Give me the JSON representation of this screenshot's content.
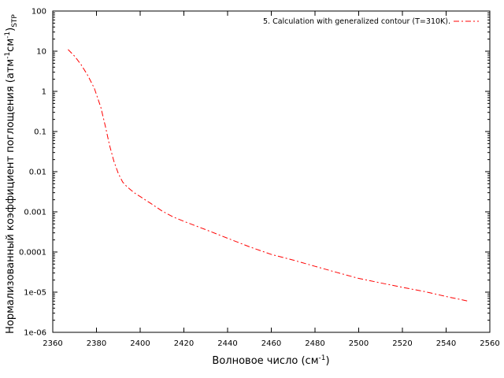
{
  "chart_data": {
    "type": "line",
    "title": "",
    "xlabel_main": "Волновое число (см",
    "xlabel_sup": "-1",
    "xlabel_end": ")",
    "ylabel_main": "Нормализованный коэффициент поглощения (атм",
    "ylabel_sup1": "-1",
    "ylabel_mid": "см",
    "ylabel_sup2": "-1",
    "ylabel_close": ")",
    "ylabel_sub": "STP",
    "xlim": [
      2360,
      2560
    ],
    "ylim": [
      1e-06,
      100
    ],
    "yscale": "log",
    "x_ticks": [
      "2360",
      "2380",
      "2400",
      "2420",
      "2440",
      "2460",
      "2480",
      "2500",
      "2520",
      "2540",
      "2560"
    ],
    "y_ticks": [
      "100",
      "10",
      "1",
      "0.1",
      "0.01",
      "0.001",
      "0.0001",
      "1e-05",
      "1e-06"
    ],
    "grid": false,
    "legend_position": "top-right",
    "series": [
      {
        "name": "5. Calculation with generalized contour (T=310K).",
        "color": "#ff0000",
        "line_style": "dash-dot",
        "x": [
          2367,
          2370,
          2373,
          2376,
          2379,
          2382,
          2384,
          2386,
          2388,
          2390,
          2392,
          2394,
          2396,
          2398,
          2400,
          2405,
          2410,
          2415,
          2420,
          2430,
          2440,
          2450,
          2460,
          2470,
          2480,
          2490,
          2500,
          2510,
          2520,
          2530,
          2540,
          2550
        ],
        "y": [
          11,
          7.5,
          4.6,
          2.5,
          1.2,
          0.4,
          0.14,
          0.045,
          0.018,
          0.009,
          0.0055,
          0.0042,
          0.0034,
          0.0028,
          0.0024,
          0.0016,
          0.00105,
          0.00075,
          0.00058,
          0.00036,
          0.00022,
          0.000135,
          8.7e-05,
          6.3e-05,
          4.4e-05,
          3.1e-05,
          2.2e-05,
          1.7e-05,
          1.32e-05,
          1.04e-05,
          7.8e-06,
          6e-06
        ]
      }
    ]
  }
}
